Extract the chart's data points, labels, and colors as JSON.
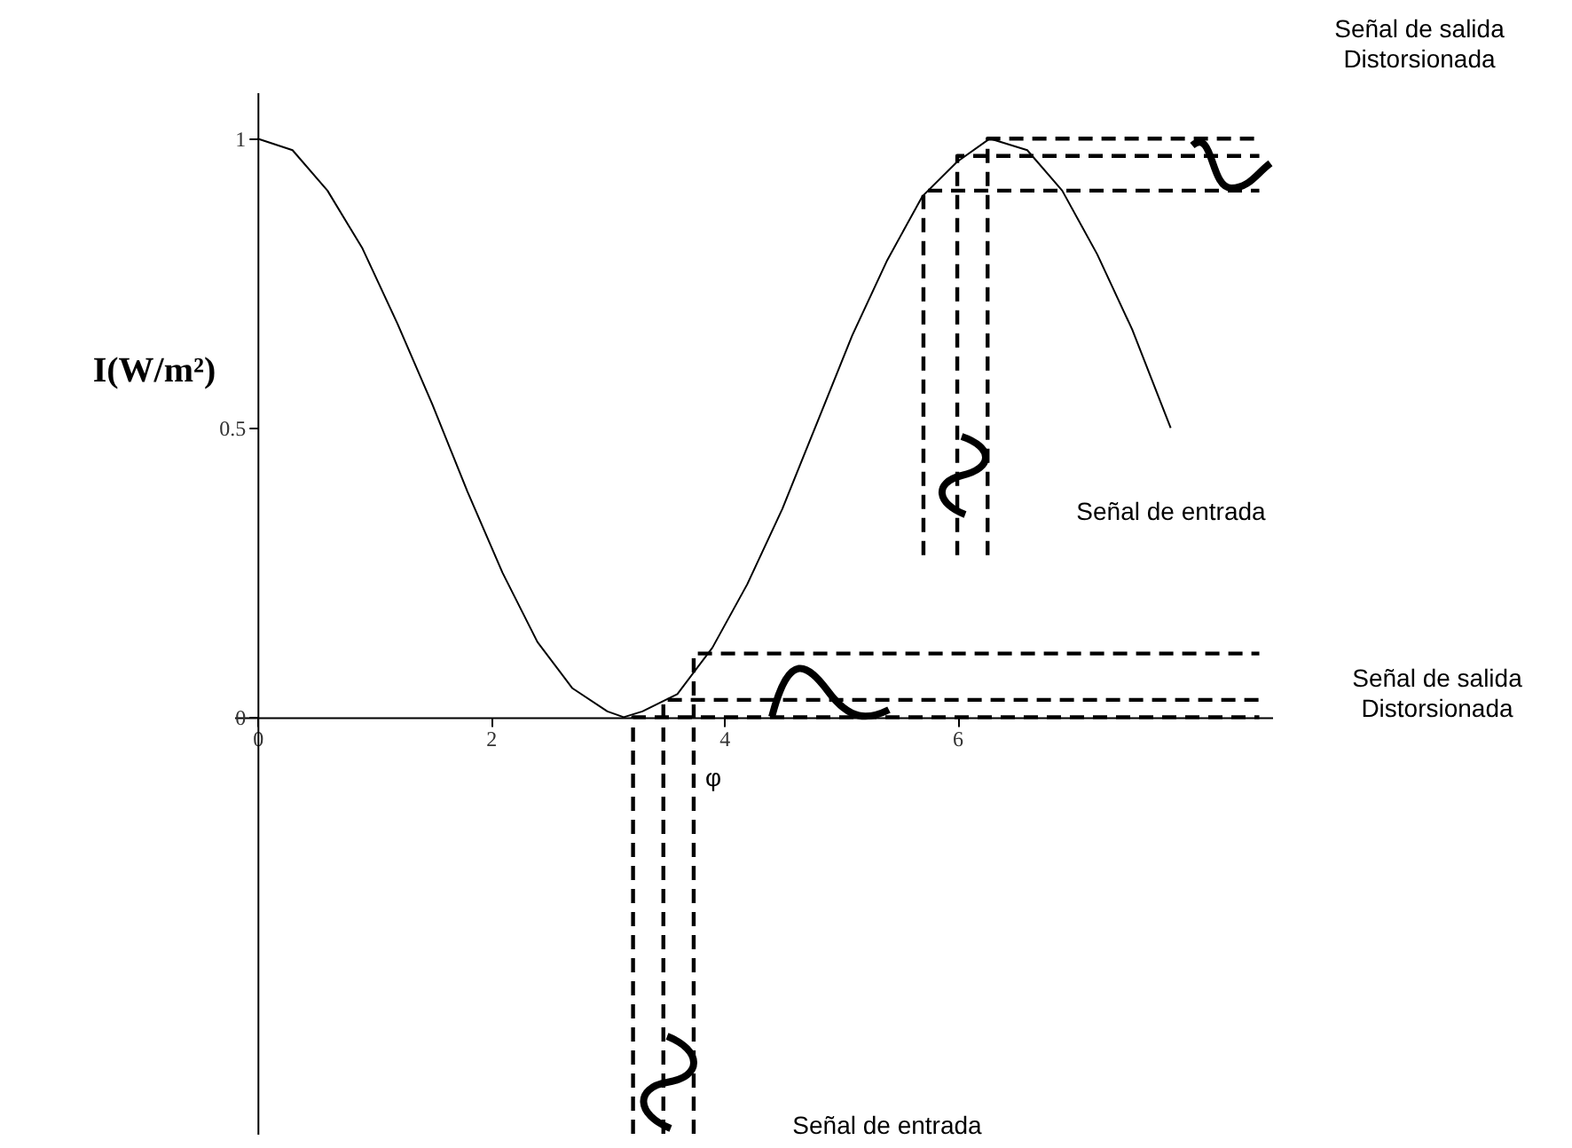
{
  "chart_data": {
    "type": "line",
    "ylabel": "I(W/m²)",
    "xlim": [
      -0.2,
      8.7
    ],
    "ylim": [
      -0.72,
      1.08
    ],
    "xticks": [
      0,
      2,
      4,
      6
    ],
    "yticks": [
      0,
      0.5,
      1
    ],
    "grid": false,
    "marker": "none",
    "x": [
      0,
      0.3,
      0.6,
      0.9,
      1.2,
      1.5,
      1.8,
      2.1,
      2.4,
      2.7,
      3.0,
      3.14,
      3.3,
      3.6,
      3.9,
      4.2,
      4.5,
      4.8,
      5.1,
      5.4,
      5.7,
      6.0,
      6.28,
      6.6,
      6.9,
      7.2,
      7.5,
      7.83
    ],
    "series": [
      {
        "color": "#000000",
        "line_style": "solid",
        "values": [
          1,
          0.98,
          0.91,
          0.81,
          0.68,
          0.54,
          0.39,
          0.25,
          0.13,
          0.05,
          0.01,
          0,
          0.01,
          0.04,
          0.12,
          0.23,
          0.36,
          0.51,
          0.66,
          0.79,
          0.9,
          0.96,
          1,
          0.98,
          0.91,
          0.8,
          0.67,
          0.5
        ]
      },
      {
        "type": "line",
        "color": "#000000",
        "line_style": "dashed",
        "x": [
          3.22,
          3.22,
          8.59
        ],
        "values": [
          -0.72,
          0,
          0
        ]
      },
      {
        "type": "line",
        "color": "#000000",
        "line_style": "dashed",
        "x": [
          3.48,
          3.48,
          8.59
        ],
        "values": [
          -0.72,
          0.03,
          0.03
        ]
      },
      {
        "type": "line",
        "color": "#000000",
        "line_style": "dashed",
        "x": [
          3.74,
          3.74,
          8.59
        ],
        "values": [
          -0.72,
          0.11,
          0.11
        ]
      },
      {
        "type": "line",
        "color": "#000000",
        "line_style": "dashed",
        "x": [
          5.71,
          5.71,
          8.59
        ],
        "values": [
          0.28,
          0.91,
          0.91
        ]
      },
      {
        "type": "line",
        "color": "#000000",
        "line_style": "dashed",
        "x": [
          6.0,
          6.0,
          8.59
        ],
        "values": [
          0.28,
          0.97,
          0.97
        ]
      },
      {
        "type": "line",
        "color": "#000000",
        "line_style": "dashed",
        "x": [
          6.26,
          6.26,
          8.59
        ],
        "values": [
          0.28,
          1,
          1
        ]
      }
    ],
    "annotations": [
      "Señal de salida Distorsionada",
      "Señal de entrada",
      "Señal de salida Distorsionada",
      "φ",
      "Señal de entrada"
    ]
  }
}
